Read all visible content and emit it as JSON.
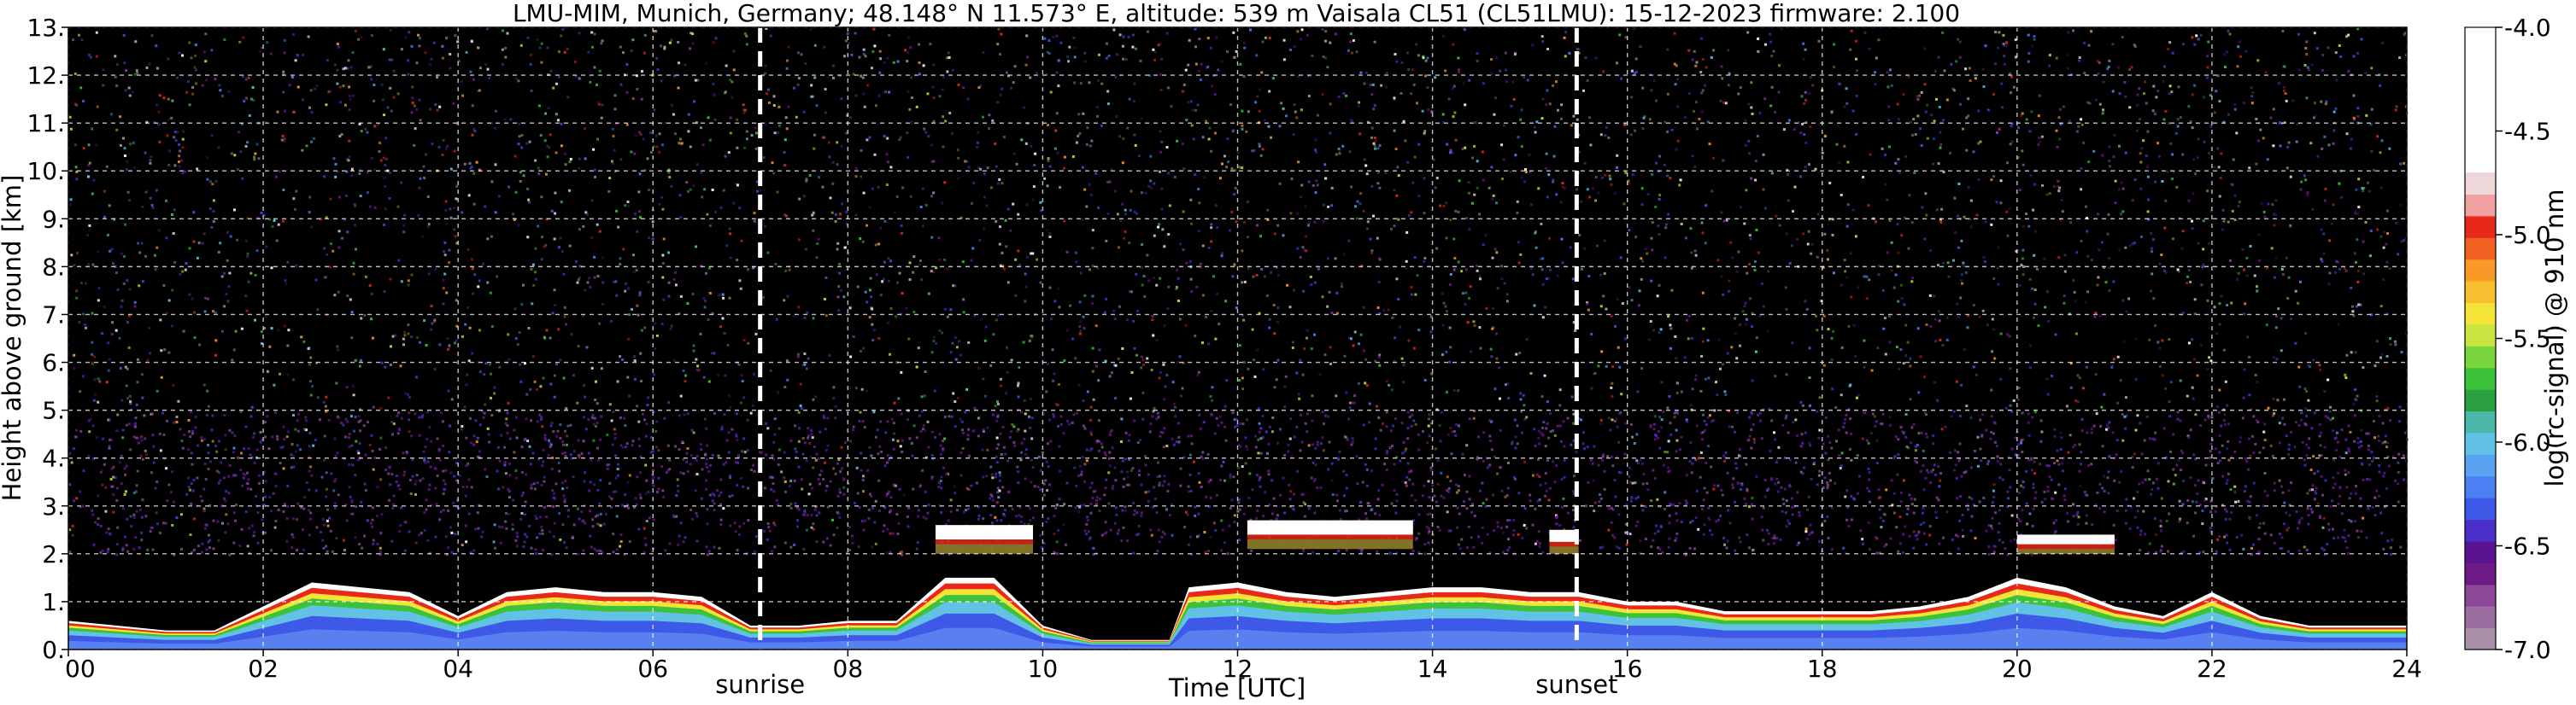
{
  "chart_data": {
    "type": "heatmap",
    "title": "LMU-MIM, Munich, Germany; 48.148° N 11.573° E, altitude: 539 m    Vaisala CL51 (CL51LMU): 15-12-2023    firmware: 2.100",
    "xlabel": "Time [UTC]",
    "ylabel": "Height above ground [km]",
    "colorbar_label": "log(rc-signal) @ 910 nm",
    "xlim": [
      0,
      24
    ],
    "ylim": [
      0,
      13
    ],
    "x_ticks": [
      "00",
      "02",
      "04",
      "06",
      "08",
      "10",
      "12",
      "14",
      "16",
      "18",
      "20",
      "22",
      "24"
    ],
    "x_tick_values": [
      0,
      2,
      4,
      6,
      8,
      10,
      12,
      14,
      16,
      18,
      20,
      22,
      24
    ],
    "y_ticks": [
      "0.",
      "1.",
      "2.",
      "3.",
      "4.",
      "5.",
      "6.",
      "7.",
      "8.",
      "9.",
      "10.",
      "11.",
      "12.",
      "13."
    ],
    "y_tick_values": [
      0,
      1,
      2,
      3,
      4,
      5,
      6,
      7,
      8,
      9,
      10,
      11,
      12,
      13
    ],
    "colorbar_range": [
      -7.0,
      -4.0
    ],
    "colorbar_ticks": [
      "-7.0",
      "-6.5",
      "-6.0",
      "-5.5",
      "-5.0",
      "-4.5",
      "-4.0"
    ],
    "colorbar_tick_values": [
      -7.0,
      -6.5,
      -6.0,
      -5.5,
      -5.0,
      -4.5,
      -4.0
    ],
    "colormap": [
      "#a890a8",
      "#9a6fa0",
      "#8a4896",
      "#6e1a86",
      "#5a1490",
      "#4a30c8",
      "#3e58e8",
      "#4a80f4",
      "#5aa2f2",
      "#62c2e6",
      "#4ab8a8",
      "#2aa040",
      "#3cc23a",
      "#7ad43c",
      "#c8e440",
      "#f4e438",
      "#f8c030",
      "#f89a28",
      "#f06020",
      "#e82818",
      "#f0a0a0",
      "#ecd8d8",
      "#ffffff"
    ],
    "grid": true,
    "events": [
      {
        "label": "sunrise",
        "time": 7.1
      },
      {
        "label": "sunset",
        "time": 15.48
      }
    ],
    "boundary_layer": {
      "description_values": "approximate top height (km) of the strong near-surface backscatter layer",
      "times": [
        0,
        0.5,
        1,
        1.5,
        2,
        2.5,
        3,
        3.5,
        4,
        4.5,
        5,
        5.5,
        6,
        6.5,
        7,
        7.5,
        8,
        8.5,
        9,
        9.5,
        10,
        10.5,
        11,
        11.3,
        11.5,
        12,
        12.5,
        13,
        13.5,
        14,
        14.5,
        15,
        15.5,
        16,
        16.5,
        17,
        17.5,
        18,
        18.5,
        19,
        19.5,
        20,
        20.5,
        21,
        21.5,
        22,
        22.5,
        23,
        23.5,
        24
      ],
      "heights": [
        0.6,
        0.5,
        0.4,
        0.4,
        0.9,
        1.4,
        1.3,
        1.2,
        0.7,
        1.2,
        1.3,
        1.2,
        1.2,
        1.1,
        0.5,
        0.5,
        0.6,
        0.6,
        1.5,
        1.5,
        0.5,
        0.2,
        0.2,
        0.2,
        1.3,
        1.4,
        1.2,
        1.1,
        1.2,
        1.3,
        1.3,
        1.2,
        1.2,
        1.0,
        1.0,
        0.8,
        0.8,
        0.8,
        0.8,
        0.9,
        1.1,
        1.5,
        1.3,
        0.9,
        0.7,
        1.2,
        0.7,
        0.5,
        0.5,
        0.5
      ]
    },
    "elevated_layers": [
      {
        "start": 8.9,
        "end": 9.9,
        "base": 2.0,
        "top": 2.6
      },
      {
        "start": 12.1,
        "end": 13.8,
        "base": 2.1,
        "top": 2.7
      },
      {
        "start": 20.0,
        "end": 21.0,
        "base": 2.0,
        "top": 2.4
      },
      {
        "start": 15.2,
        "end": 15.5,
        "base": 2.0,
        "top": 2.5
      }
    ]
  }
}
